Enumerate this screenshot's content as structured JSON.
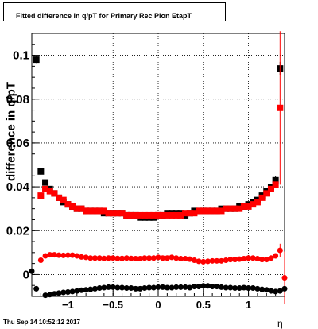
{
  "title": "Fitted difference in q/pT for Primary Rec Pion EtapT",
  "ylabel": "difference in q/pT",
  "xlabel": "η",
  "timestamp": "Thu Sep 14 10:52:12 2017",
  "chart_data": {
    "type": "scatter",
    "xlim": [
      -1.4,
      1.4
    ],
    "ylim": [
      -0.01,
      0.11
    ],
    "grid": true,
    "x_ticks": [
      "−1",
      "−0.5",
      "0",
      "0.5",
      "1"
    ],
    "x_tick_values": [
      -1,
      -0.5,
      0,
      0.5,
      1
    ],
    "y_ticks": [
      "0",
      "0.02",
      "0.04",
      "0.06",
      "0.08",
      "0.1"
    ],
    "y_tick_values": [
      0,
      0.02,
      0.04,
      0.06,
      0.08,
      0.1
    ],
    "series": [
      {
        "marker": "square",
        "color": "#000000",
        "points": [
          [
            -1.35,
            0.098
          ],
          [
            -1.3,
            0.047
          ],
          [
            -1.25,
            0.042
          ],
          [
            -1.2,
            0.039
          ],
          [
            -1.15,
            0.037
          ],
          [
            -1.1,
            0.035
          ],
          [
            -1.05,
            0.033
          ],
          [
            -1.0,
            0.032
          ],
          [
            -0.95,
            0.031
          ],
          [
            -0.9,
            0.03
          ],
          [
            -0.85,
            0.03
          ],
          [
            -0.8,
            0.029
          ],
          [
            -0.75,
            0.029
          ],
          [
            -0.7,
            0.029
          ],
          [
            -0.65,
            0.029
          ],
          [
            -0.6,
            0.028
          ],
          [
            -0.55,
            0.028
          ],
          [
            -0.5,
            0.028
          ],
          [
            -0.45,
            0.028
          ],
          [
            -0.4,
            0.028
          ],
          [
            -0.35,
            0.027
          ],
          [
            -0.3,
            0.027
          ],
          [
            -0.25,
            0.027
          ],
          [
            -0.2,
            0.026
          ],
          [
            -0.15,
            0.026
          ],
          [
            -0.1,
            0.026
          ],
          [
            -0.05,
            0.026
          ],
          [
            0.0,
            0.027
          ],
          [
            0.05,
            0.027
          ],
          [
            0.1,
            0.028
          ],
          [
            0.15,
            0.028
          ],
          [
            0.2,
            0.028
          ],
          [
            0.25,
            0.028
          ],
          [
            0.3,
            0.027
          ],
          [
            0.35,
            0.028
          ],
          [
            0.4,
            0.029
          ],
          [
            0.45,
            0.029
          ],
          [
            0.5,
            0.029
          ],
          [
            0.55,
            0.029
          ],
          [
            0.6,
            0.029
          ],
          [
            0.65,
            0.029
          ],
          [
            0.7,
            0.03
          ],
          [
            0.75,
            0.03
          ],
          [
            0.8,
            0.03
          ],
          [
            0.85,
            0.03
          ],
          [
            0.9,
            0.031
          ],
          [
            0.95,
            0.031
          ],
          [
            1.0,
            0.032
          ],
          [
            1.05,
            0.033
          ],
          [
            1.1,
            0.034
          ],
          [
            1.15,
            0.036
          ],
          [
            1.2,
            0.038
          ],
          [
            1.25,
            0.04
          ],
          [
            1.3,
            0.043
          ],
          [
            1.35,
            0.094
          ]
        ],
        "errors": [
          [
            -1.35,
            0.0015
          ],
          [
            -1.3,
            0.0015
          ],
          [
            1.3,
            0.002
          ],
          [
            1.35,
            0.003
          ]
        ]
      },
      {
        "marker": "square",
        "color": "#ff0000",
        "points": [
          [
            -1.3,
            0.036
          ],
          [
            -1.25,
            0.039
          ],
          [
            -1.2,
            0.038
          ],
          [
            -1.15,
            0.037
          ],
          [
            -1.1,
            0.035
          ],
          [
            -1.05,
            0.034
          ],
          [
            -1.0,
            0.032
          ],
          [
            -0.95,
            0.031
          ],
          [
            -0.9,
            0.03
          ],
          [
            -0.85,
            0.03
          ],
          [
            -0.8,
            0.029
          ],
          [
            -0.75,
            0.029
          ],
          [
            -0.7,
            0.029
          ],
          [
            -0.65,
            0.029
          ],
          [
            -0.6,
            0.029
          ],
          [
            -0.55,
            0.028
          ],
          [
            -0.5,
            0.028
          ],
          [
            -0.45,
            0.028
          ],
          [
            -0.4,
            0.028
          ],
          [
            -0.35,
            0.027
          ],
          [
            -0.3,
            0.027
          ],
          [
            -0.25,
            0.027
          ],
          [
            -0.2,
            0.027
          ],
          [
            -0.15,
            0.027
          ],
          [
            -0.1,
            0.027
          ],
          [
            -0.05,
            0.027
          ],
          [
            0.0,
            0.027
          ],
          [
            0.05,
            0.027
          ],
          [
            0.1,
            0.027
          ],
          [
            0.15,
            0.027
          ],
          [
            0.2,
            0.027
          ],
          [
            0.25,
            0.027
          ],
          [
            0.3,
            0.028
          ],
          [
            0.35,
            0.028
          ],
          [
            0.4,
            0.028
          ],
          [
            0.45,
            0.029
          ],
          [
            0.5,
            0.029
          ],
          [
            0.55,
            0.029
          ],
          [
            0.6,
            0.029
          ],
          [
            0.65,
            0.029
          ],
          [
            0.7,
            0.029
          ],
          [
            0.75,
            0.03
          ],
          [
            0.8,
            0.03
          ],
          [
            0.85,
            0.03
          ],
          [
            0.9,
            0.03
          ],
          [
            0.95,
            0.031
          ],
          [
            1.0,
            0.031
          ],
          [
            1.05,
            0.032
          ],
          [
            1.1,
            0.033
          ],
          [
            1.15,
            0.035
          ],
          [
            1.2,
            0.037
          ],
          [
            1.25,
            0.039
          ],
          [
            1.3,
            0.041
          ],
          [
            1.35,
            0.076
          ]
        ],
        "errors": [
          [
            1.35,
            0.035
          ]
        ]
      },
      {
        "marker": "circle",
        "color": "#ff0000",
        "points": [
          [
            -1.3,
            0.0065
          ],
          [
            -1.25,
            0.0085
          ],
          [
            -1.2,
            0.009
          ],
          [
            -1.15,
            0.009
          ],
          [
            -1.1,
            0.0088
          ],
          [
            -1.05,
            0.0087
          ],
          [
            -1.0,
            0.0088
          ],
          [
            -0.95,
            0.0088
          ],
          [
            -0.9,
            0.0085
          ],
          [
            -0.85,
            0.008
          ],
          [
            -0.8,
            0.0078
          ],
          [
            -0.75,
            0.0075
          ],
          [
            -0.7,
            0.0075
          ],
          [
            -0.65,
            0.0075
          ],
          [
            -0.6,
            0.0073
          ],
          [
            -0.55,
            0.0075
          ],
          [
            -0.5,
            0.0075
          ],
          [
            -0.45,
            0.0073
          ],
          [
            -0.4,
            0.0073
          ],
          [
            -0.35,
            0.0075
          ],
          [
            -0.3,
            0.0073
          ],
          [
            -0.25,
            0.0072
          ],
          [
            -0.2,
            0.0072
          ],
          [
            -0.15,
            0.0075
          ],
          [
            -0.1,
            0.0075
          ],
          [
            -0.05,
            0.0075
          ],
          [
            0.0,
            0.0078
          ],
          [
            0.05,
            0.0075
          ],
          [
            0.1,
            0.0075
          ],
          [
            0.15,
            0.0078
          ],
          [
            0.2,
            0.0075
          ],
          [
            0.25,
            0.0072
          ],
          [
            0.3,
            0.0072
          ],
          [
            0.35,
            0.007
          ],
          [
            0.4,
            0.0065
          ],
          [
            0.45,
            0.006
          ],
          [
            0.5,
            0.0058
          ],
          [
            0.55,
            0.006
          ],
          [
            0.6,
            0.0062
          ],
          [
            0.65,
            0.0062
          ],
          [
            0.7,
            0.0062
          ],
          [
            0.75,
            0.0065
          ],
          [
            0.8,
            0.0068
          ],
          [
            0.85,
            0.0068
          ],
          [
            0.9,
            0.007
          ],
          [
            0.95,
            0.0072
          ],
          [
            1.0,
            0.0075
          ],
          [
            1.05,
            0.0075
          ],
          [
            1.1,
            0.0072
          ],
          [
            1.15,
            0.0068
          ],
          [
            1.2,
            0.0068
          ],
          [
            1.25,
            0.0075
          ],
          [
            1.3,
            0.0085
          ],
          [
            1.35,
            0.011
          ],
          [
            1.4,
            -0.0015
          ]
        ],
        "errors": [
          [
            1.35,
            0.003
          ],
          [
            1.4,
            0.012
          ]
        ]
      },
      {
        "marker": "circle",
        "color": "#000000",
        "points": [
          [
            -1.4,
            0.0015
          ],
          [
            -1.35,
            -0.0065
          ],
          [
            -1.25,
            -0.0095
          ],
          [
            -1.2,
            -0.0092
          ],
          [
            -1.15,
            -0.0088
          ],
          [
            -1.1,
            -0.0085
          ],
          [
            -1.05,
            -0.0082
          ],
          [
            -1.0,
            -0.008
          ],
          [
            -0.95,
            -0.0078
          ],
          [
            -0.9,
            -0.0075
          ],
          [
            -0.85,
            -0.0072
          ],
          [
            -0.8,
            -0.007
          ],
          [
            -0.75,
            -0.0068
          ],
          [
            -0.7,
            -0.0065
          ],
          [
            -0.65,
            -0.0062
          ],
          [
            -0.6,
            -0.006
          ],
          [
            -0.55,
            -0.0058
          ],
          [
            -0.5,
            -0.0058
          ],
          [
            -0.45,
            -0.006
          ],
          [
            -0.4,
            -0.006
          ],
          [
            -0.35,
            -0.0062
          ],
          [
            -0.3,
            -0.0062
          ],
          [
            -0.25,
            -0.0065
          ],
          [
            -0.2,
            -0.0065
          ],
          [
            -0.15,
            -0.0062
          ],
          [
            -0.1,
            -0.006
          ],
          [
            -0.05,
            -0.006
          ],
          [
            0.0,
            -0.0058
          ],
          [
            0.05,
            -0.0058
          ],
          [
            0.1,
            -0.006
          ],
          [
            0.15,
            -0.006
          ],
          [
            0.2,
            -0.0058
          ],
          [
            0.25,
            -0.0058
          ],
          [
            0.3,
            -0.0058
          ],
          [
            0.35,
            -0.006
          ],
          [
            0.4,
            -0.0055
          ],
          [
            0.45,
            -0.0055
          ],
          [
            0.5,
            -0.0052
          ],
          [
            0.55,
            -0.0052
          ],
          [
            0.6,
            -0.0055
          ],
          [
            0.65,
            -0.0055
          ],
          [
            0.7,
            -0.0058
          ],
          [
            0.75,
            -0.006
          ],
          [
            0.8,
            -0.006
          ],
          [
            0.85,
            -0.0062
          ],
          [
            0.9,
            -0.0062
          ],
          [
            0.95,
            -0.006
          ],
          [
            1.0,
            -0.0062
          ],
          [
            1.05,
            -0.0062
          ],
          [
            1.1,
            -0.0065
          ],
          [
            1.15,
            -0.0068
          ],
          [
            1.2,
            -0.007
          ],
          [
            1.25,
            -0.0075
          ],
          [
            1.3,
            -0.0078
          ],
          [
            1.35,
            -0.0075
          ],
          [
            1.4,
            -0.0065
          ]
        ],
        "errors": []
      }
    ]
  }
}
